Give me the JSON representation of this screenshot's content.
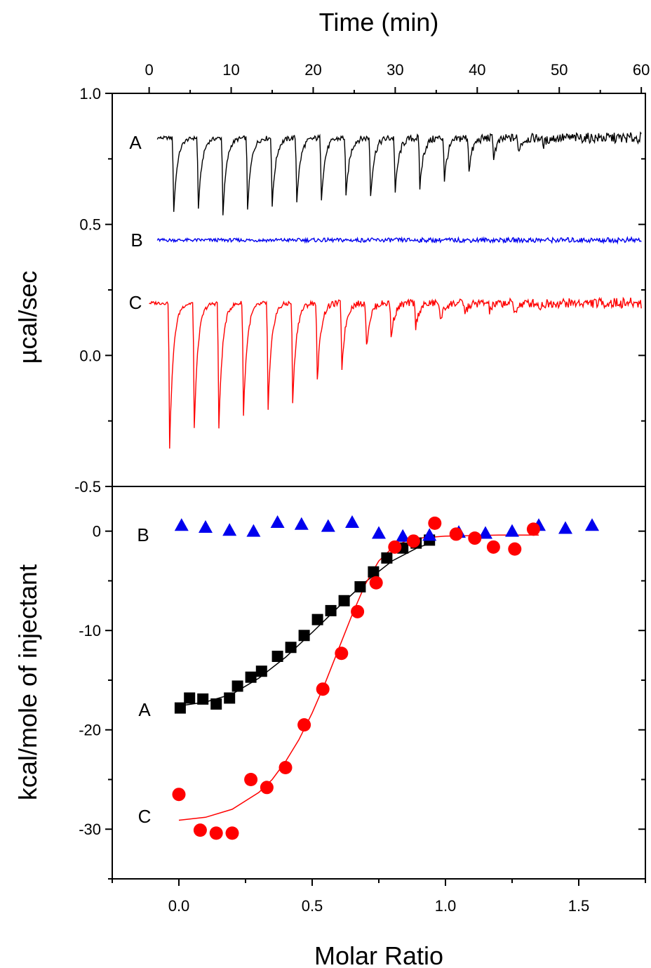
{
  "chart_data": [
    {
      "type": "line",
      "panel": "top",
      "xlabel": "Time (min)",
      "ylabel": "µcal/sec",
      "xlim": [
        -4.5,
        60.5
      ],
      "ylim": [
        -0.5,
        1.0
      ],
      "x_ticks": [
        "0",
        "10",
        "20",
        "30",
        "40",
        "50",
        "60"
      ],
      "x_tick_values": [
        0,
        10,
        20,
        30,
        40,
        50,
        60
      ],
      "y_ticks": [
        "1.0",
        "0.5",
        "0.0",
        "-0.5"
      ],
      "y_tick_values": [
        1.0,
        0.5,
        0.0,
        -0.5
      ],
      "x_axis_position": "top",
      "grid": false,
      "series": [
        {
          "name": "A",
          "color": "#000000",
          "x_start": 1.0,
          "x_end": 60.0,
          "baseline": 0.83,
          "injection_times": [
            3.0,
            6.0,
            9.0,
            12.0,
            15.0,
            18.0,
            21.0,
            24.0,
            27.0,
            30.0,
            33.0,
            36.0,
            39.0,
            42.0,
            45.0,
            48.0
          ],
          "peak_minima": [
            0.55,
            0.56,
            0.54,
            0.56,
            0.57,
            0.59,
            0.6,
            0.6,
            0.61,
            0.62,
            0.64,
            0.67,
            0.71,
            0.76,
            0.78,
            0.8
          ]
        },
        {
          "name": "B",
          "color": "#0000ee",
          "x_start": 1.0,
          "x_end": 60.0,
          "baseline": 0.44,
          "injection_times": [],
          "peak_minima": []
        },
        {
          "name": "C",
          "color": "#ff0000",
          "x_start": 0.0,
          "x_end": 60.0,
          "baseline": 0.2,
          "injection_times": [
            2.5,
            5.5,
            8.5,
            11.5,
            14.5,
            17.5,
            20.5,
            23.5,
            26.5,
            29.5,
            32.5,
            35.5,
            38.5,
            41.5,
            44.5,
            47.5
          ],
          "peak_minima": [
            -0.35,
            -0.28,
            -0.28,
            -0.23,
            -0.21,
            -0.18,
            -0.1,
            -0.05,
            0.03,
            0.07,
            0.11,
            0.13,
            0.16,
            0.17,
            0.16,
            0.18
          ]
        }
      ],
      "annotations": [
        "A",
        "B",
        "C"
      ]
    },
    {
      "type": "scatter",
      "panel": "bottom",
      "xlabel": "Molar Ratio",
      "ylabel": "kcal/mole of injectant",
      "xlim": [
        -0.25,
        1.75
      ],
      "ylim": [
        -35,
        4.5
      ],
      "x_ticks": [
        "0.0",
        "0.5",
        "1.0",
        "1.5"
      ],
      "x_tick_values": [
        0.0,
        0.5,
        1.0,
        1.5
      ],
      "y_ticks": [
        "0",
        "-10",
        "-20",
        "-30"
      ],
      "y_tick_values": [
        0,
        -10,
        -20,
        -30
      ],
      "grid": false,
      "series": [
        {
          "name": "A",
          "marker": "square",
          "color": "#000000",
          "x": [
            0.005,
            0.04,
            0.09,
            0.14,
            0.19,
            0.22,
            0.27,
            0.31,
            0.37,
            0.42,
            0.47,
            0.52,
            0.57,
            0.62,
            0.68,
            0.73,
            0.78,
            0.84,
            0.89,
            0.94
          ],
          "y": [
            -17.8,
            -16.8,
            -16.9,
            -17.4,
            -16.8,
            -15.6,
            -14.7,
            -14.1,
            -12.6,
            -11.7,
            -10.5,
            -8.9,
            -8.0,
            -7.0,
            -5.6,
            -4.1,
            -2.7,
            -1.7,
            -1.2,
            -0.9
          ],
          "fit_x": [
            0.0,
            0.1,
            0.2,
            0.3,
            0.4,
            0.5,
            0.6,
            0.7,
            0.8,
            0.9,
            0.95
          ],
          "fit_y": [
            -17.6,
            -17.2,
            -16.4,
            -14.8,
            -12.7,
            -10.2,
            -7.6,
            -5.1,
            -3.0,
            -1.6,
            -1.2
          ]
        },
        {
          "name": "B",
          "marker": "triangle",
          "color": "#0000ee",
          "x": [
            0.01,
            0.1,
            0.19,
            0.28,
            0.37,
            0.46,
            0.56,
            0.65,
            0.75,
            0.84,
            0.94,
            1.05,
            1.15,
            1.25,
            1.35,
            1.45,
            1.55
          ],
          "y": [
            0.6,
            0.4,
            0.1,
            0.0,
            0.9,
            0.7,
            0.5,
            0.9,
            -0.2,
            -0.5,
            -0.4,
            -0.1,
            -0.2,
            0.0,
            0.6,
            0.3,
            0.6
          ]
        },
        {
          "name": "C",
          "marker": "circle",
          "color": "#ff0000",
          "x": [
            0.0,
            0.08,
            0.14,
            0.2,
            0.27,
            0.33,
            0.4,
            0.47,
            0.54,
            0.61,
            0.67,
            0.74,
            0.81,
            0.88,
            0.96,
            1.04,
            1.11,
            1.18,
            1.26,
            1.33
          ],
          "y": [
            -26.5,
            -30.1,
            -30.4,
            -30.4,
            -25.0,
            -25.8,
            -23.8,
            -19.5,
            -15.9,
            -12.3,
            -8.1,
            -5.2,
            -1.6,
            -1.0,
            0.8,
            -0.3,
            -0.7,
            -1.6,
            -1.8,
            0.2
          ],
          "fit_x": [
            0.0,
            0.1,
            0.2,
            0.3,
            0.35,
            0.4,
            0.45,
            0.5,
            0.55,
            0.6,
            0.65,
            0.7,
            0.75,
            0.8,
            0.85,
            0.9,
            1.0,
            1.2,
            1.35
          ],
          "fit_y": [
            -29.1,
            -28.8,
            -28.0,
            -26.3,
            -25.0,
            -23.2,
            -21.0,
            -18.3,
            -15.2,
            -11.8,
            -8.4,
            -5.3,
            -3.0,
            -1.7,
            -1.0,
            -0.7,
            -0.5,
            -0.4,
            -0.4
          ]
        }
      ],
      "annotations": [
        "A",
        "B",
        "C"
      ]
    }
  ]
}
